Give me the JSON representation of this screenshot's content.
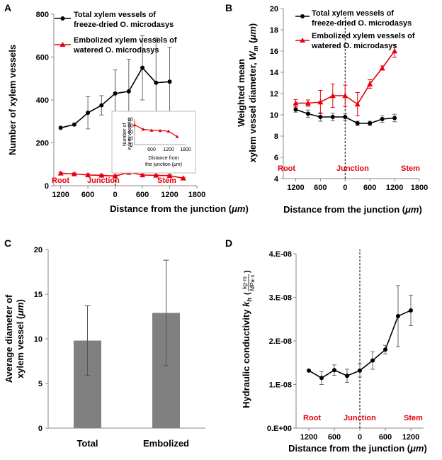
{
  "chart_data": [
    {
      "panel": "A",
      "type": "line",
      "xlabel": "Distance from the junction (",
      "xlabel_unit": "μm",
      "ylabel": "Number of xylem vessels",
      "xlim": [
        1350,
        -1800
      ],
      "ylim": [
        0,
        800
      ],
      "xticks": [
        {
          "v": 1200,
          "t": "1200"
        },
        {
          "v": 600,
          "t": "600"
        },
        {
          "v": 0,
          "t": "0"
        },
        {
          "v": -600,
          "t": "600"
        },
        {
          "v": -1200,
          "t": "1200"
        },
        {
          "v": -1800,
          "t": "1800"
        }
      ],
      "yticks": [
        0,
        200,
        400,
        600,
        800
      ],
      "region_labels": [
        "Root",
        "Junction",
        "Stem"
      ],
      "series": [
        {
          "name": "Total xylem vessels of freeze-dried O. microdasys",
          "legend_lines": [
            "Total xylem vessels of",
            "freeze-dried O. microdasys"
          ],
          "color": "#000000",
          "marker": "circle",
          "x": [
            1200,
            900,
            600,
            300,
            0,
            -300,
            -600,
            -900,
            -1200
          ],
          "y": [
            270,
            285,
            340,
            375,
            430,
            440,
            550,
            480,
            485
          ],
          "err": [
            0,
            0,
            75,
            45,
            110,
            150,
            150,
            210,
            160
          ]
        },
        {
          "name": "Embolized xylem vessels of watered O. microdasys",
          "legend_lines": [
            "Embolized xylem vessels of",
            "watered O. microdasys"
          ],
          "color": "#e8000b",
          "marker": "triangle",
          "x": [
            1200,
            900,
            600,
            300,
            0,
            -300,
            -600,
            -900,
            -1200,
            -1500
          ],
          "y": [
            58,
            55,
            50,
            48,
            45,
            62,
            50,
            48,
            47,
            35
          ],
          "err": [
            4,
            4,
            6,
            5,
            5,
            6,
            4,
            4,
            4,
            4
          ]
        }
      ],
      "inset": {
        "ylabel_lines": [
          "Number of",
          "xylem vessels"
        ],
        "xlabel_lines": [
          "Distance from",
          "the junction ("
        ],
        "xlabel_unit": "μm",
        "xlim": [
          0,
          1800
        ],
        "ylim": [
          0,
          80
        ],
        "xticks": [
          600,
          1200,
          1800
        ],
        "yticks": [
          0,
          20,
          40,
          60,
          80
        ],
        "series": {
          "color": "#e8000b",
          "x": [
            0,
            300,
            600,
            900,
            1200,
            1500
          ],
          "y": [
            62,
            48,
            45,
            44,
            42,
            25
          ],
          "err": [
            12,
            5,
            4,
            4,
            3,
            3
          ]
        }
      }
    },
    {
      "panel": "B",
      "type": "line",
      "xlabel": "Distance from the junction (",
      "xlabel_unit": "μm",
      "ylabel_lines": [
        "Weighted mean",
        "xylem vessel diameter, "
      ],
      "ylabel_sym": "W",
      "ylabel_sub": "m",
      "ylabel_unit": "μm",
      "xlim": [
        1500,
        -1800
      ],
      "ylim": [
        4,
        20
      ],
      "xticks": [
        {
          "v": 1200,
          "t": "1200"
        },
        {
          "v": 600,
          "t": "600"
        },
        {
          "v": 0,
          "t": "0"
        },
        {
          "v": -600,
          "t": "600"
        },
        {
          "v": -1200,
          "t": "1200"
        },
        {
          "v": -1800,
          "t": "1800"
        }
      ],
      "yticks": [
        4,
        6,
        8,
        10,
        12,
        14,
        16,
        18,
        20
      ],
      "region_labels": [
        "Root",
        "Junction",
        "Stem"
      ],
      "series": [
        {
          "name": "Total xylem vessels of freeze-dried O. microdasys",
          "legend_lines": [
            "Total xylem vessels of",
            "freeze-dried O. microdasys"
          ],
          "color": "#000000",
          "marker": "circle",
          "x": [
            1200,
            900,
            600,
            300,
            0,
            -300,
            -600,
            -900,
            -1200
          ],
          "y": [
            10.5,
            10.1,
            9.8,
            9.8,
            9.8,
            9.2,
            9.2,
            9.6,
            9.7
          ],
          "err": [
            0.25,
            0.35,
            0.4,
            0.35,
            0.3,
            0.2,
            0.2,
            0.3,
            0.35
          ]
        },
        {
          "name": "Embolized xylem vessels of watered O. microdasys",
          "legend_lines": [
            "Embolized xylem vessels of",
            "watered O. microdasys"
          ],
          "color": "#e8000b",
          "marker": "triangle",
          "x": [
            1200,
            900,
            600,
            300,
            0,
            -300,
            -600,
            -900,
            -1200
          ],
          "y": [
            11.1,
            11.1,
            11.2,
            11.8,
            11.8,
            11.0,
            12.9,
            14.4,
            16.0
          ],
          "err": [
            0.35,
            0.3,
            1.1,
            1.1,
            1.0,
            1.1,
            0.4,
            0.2,
            0.6
          ]
        }
      ]
    },
    {
      "panel": "C",
      "type": "bar",
      "categories": [
        "Total",
        "Embolized"
      ],
      "values": [
        9.8,
        12.9
      ],
      "err": [
        3.9,
        5.9
      ],
      "ylabel_lines": [
        "Average diameter of",
        "xylem vessel ("
      ],
      "ylabel_unit": "μm",
      "ylim": [
        0,
        20
      ],
      "yticks": [
        0,
        5,
        10,
        15,
        20
      ],
      "bar_color": "#808080"
    },
    {
      "panel": "D",
      "type": "line",
      "xlabel": "Distance from the junction (",
      "xlabel_unit": "μm",
      "ylabel": "Hydraulic conductivity ",
      "ylabel_sym": "k",
      "ylabel_sub": "h",
      "ylabel_num": "kg·m",
      "ylabel_den": "MPa·s",
      "xlim": [
        1500,
        -1500
      ],
      "ylim": [
        0,
        4e-08
      ],
      "xticks": [
        {
          "v": 1200,
          "t": "1200"
        },
        {
          "v": 600,
          "t": "600"
        },
        {
          "v": 0,
          "t": "0"
        },
        {
          "v": -600,
          "t": "600"
        },
        {
          "v": -1200,
          "t": "1200"
        }
      ],
      "yticks": [
        {
          "v": 0,
          "t": "0.E+00"
        },
        {
          "v": 1e-08,
          "t": "1.E-08"
        },
        {
          "v": 2e-08,
          "t": "2.E-08"
        },
        {
          "v": 3e-08,
          "t": "3.E-08"
        },
        {
          "v": 4e-08,
          "t": "4.E-08"
        }
      ],
      "region_labels": [
        "Root",
        "Junction",
        "Stem"
      ],
      "series": [
        {
          "name": "Hydraulic conductivity",
          "color": "#000000",
          "marker": "circle",
          "x": [
            1200,
            900,
            600,
            300,
            0,
            -300,
            -600,
            -900,
            -1200
          ],
          "y": [
            1.32e-08,
            1.15e-08,
            1.33e-08,
            1.2e-08,
            1.32e-08,
            1.55e-08,
            1.8e-08,
            2.57e-08,
            2.7e-08
          ],
          "err": [
            0,
            1.5e-09,
            1.2e-09,
            1.5e-09,
            1.5e-09,
            2e-09,
            1e-09,
            7e-09,
            3.5e-09
          ]
        }
      ]
    }
  ]
}
